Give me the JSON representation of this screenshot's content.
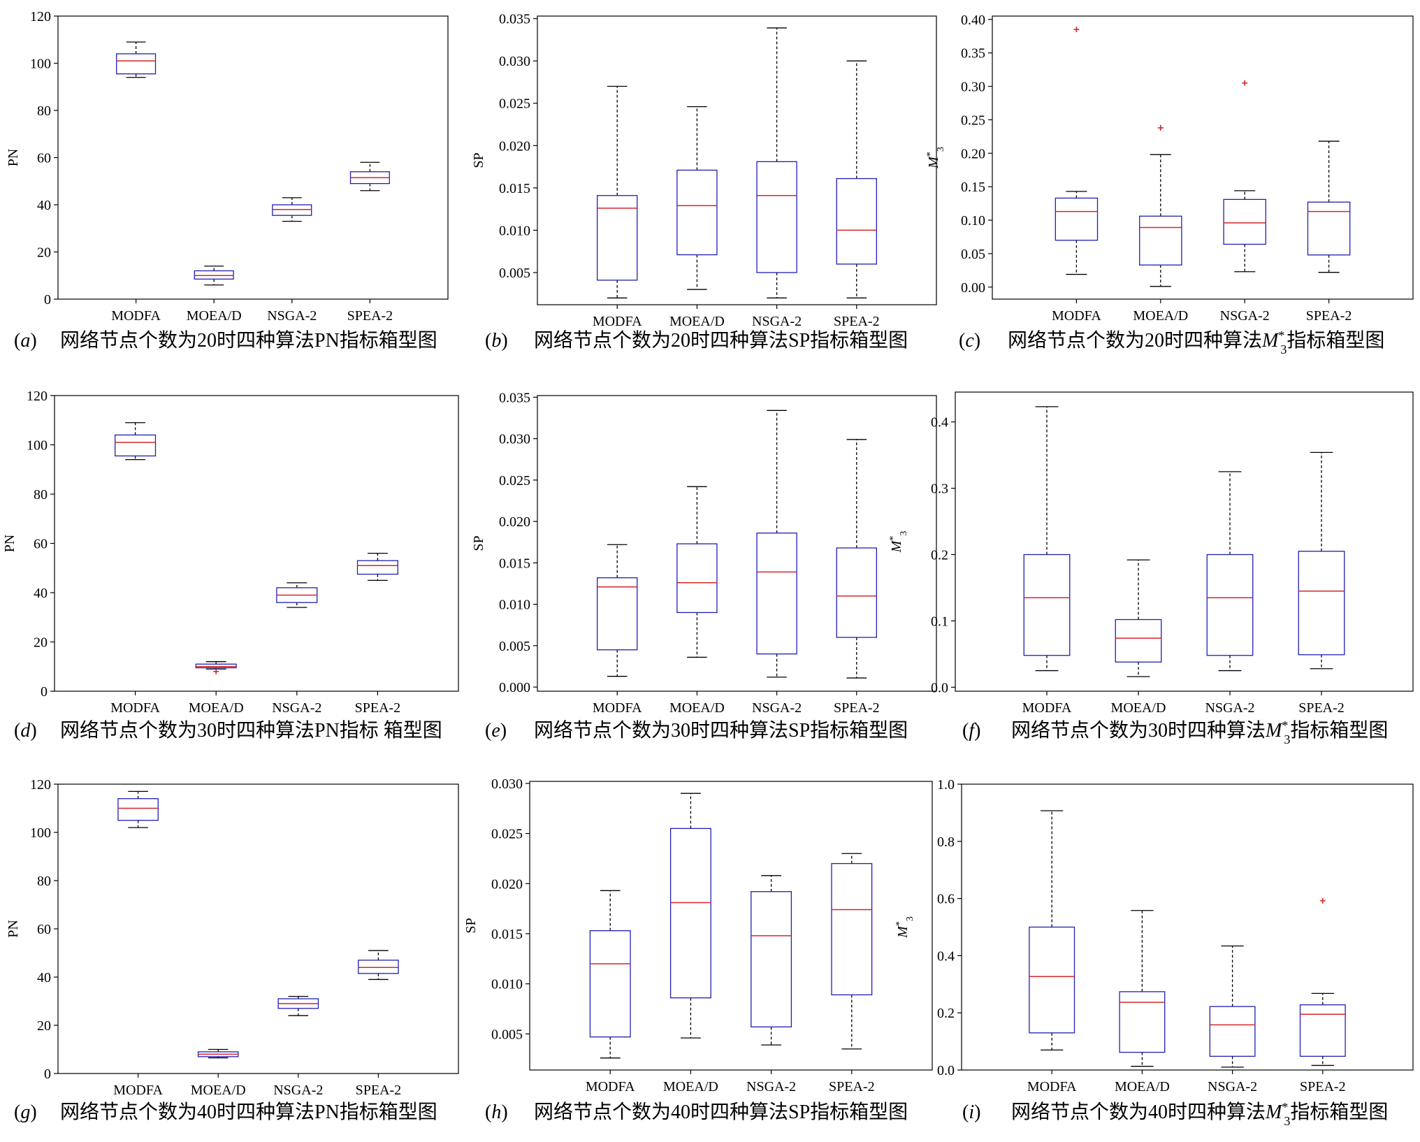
{
  "chart_data": [
    {
      "panel": "a",
      "type": "box",
      "caption": "网络节点个数为20时四种算法PN指标箱型图",
      "ylabel": "PN",
      "ylim": [
        0,
        120
      ],
      "yticks": [
        0,
        20,
        40,
        60,
        80,
        100,
        120
      ],
      "categories": [
        "MODFA",
        "MOEA/D",
        "NSGA-2",
        "SPEA-2"
      ],
      "boxes": [
        {
          "category": "MODFA",
          "whislo": 94,
          "q1": 95.5,
          "median": 101,
          "q3": 104,
          "whishi": 109,
          "fliers": []
        },
        {
          "category": "MOEA/D",
          "whislo": 6,
          "q1": 8.5,
          "median": 10,
          "q3": 12,
          "whishi": 14,
          "fliers": []
        },
        {
          "category": "NSGA-2",
          "whislo": 33,
          "q1": 35.5,
          "median": 38,
          "q3": 40,
          "whishi": 43,
          "fliers": []
        },
        {
          "category": "SPEA-2",
          "whislo": 46,
          "q1": 49,
          "median": 51.5,
          "q3": 54,
          "whishi": 58,
          "fliers": []
        }
      ]
    },
    {
      "panel": "b",
      "type": "box",
      "caption": "网络节点个数为20时四种算法SP指标箱型图",
      "ylabel": "SP",
      "ylim": [
        0.0012,
        0.0353
      ],
      "yticks": [
        0.005,
        0.01,
        0.015,
        0.02,
        0.025,
        0.03,
        0.035
      ],
      "tick_decimals": 3,
      "categories": [
        "MODFA",
        "MOEA/D",
        "NSGA-2",
        "SPEA-2"
      ],
      "boxes": [
        {
          "category": "MODFA",
          "whislo": 0.002,
          "q1": 0.0041,
          "median": 0.0126,
          "q3": 0.0141,
          "whishi": 0.027,
          "fliers": []
        },
        {
          "category": "MOEA/D",
          "whislo": 0.003,
          "q1": 0.0071,
          "median": 0.0129,
          "q3": 0.0171,
          "whishi": 0.0246,
          "fliers": []
        },
        {
          "category": "NSGA-2",
          "whislo": 0.002,
          "q1": 0.005,
          "median": 0.0141,
          "q3": 0.0181,
          "whishi": 0.0339,
          "fliers": []
        },
        {
          "category": "SPEA-2",
          "whislo": 0.002,
          "q1": 0.006,
          "median": 0.01,
          "q3": 0.0161,
          "whishi": 0.03,
          "fliers": []
        }
      ]
    },
    {
      "panel": "c",
      "type": "box",
      "caption": "网络节点个数为20时四种算法M*3指标箱型图",
      "caption_parts": {
        "text1": "网络节点个数为20时四种算法",
        "symbol": "M",
        "sup": "*",
        "sub": "3",
        "text2": "指标箱型图"
      },
      "ylabel": "M*3",
      "ylim": [
        -0.018,
        0.405
      ],
      "yticks": [
        0.0,
        0.05,
        0.1,
        0.15,
        0.2,
        0.25,
        0.3,
        0.35,
        0.4
      ],
      "tick_decimals": 2,
      "categories": [
        "MODFA",
        "MOEA/D",
        "NSGA-2",
        "SPEA-2"
      ],
      "boxes": [
        {
          "category": "MODFA",
          "whislo": 0.019,
          "q1": 0.07,
          "median": 0.113,
          "q3": 0.133,
          "whishi": 0.143,
          "fliers": [
            0.385
          ]
        },
        {
          "category": "MOEA/D",
          "whislo": 0.001,
          "q1": 0.033,
          "median": 0.089,
          "q3": 0.106,
          "whishi": 0.198,
          "fliers": [
            0.238
          ]
        },
        {
          "category": "NSGA-2",
          "whislo": 0.023,
          "q1": 0.064,
          "median": 0.096,
          "q3": 0.131,
          "whishi": 0.144,
          "fliers": [
            0.305
          ]
        },
        {
          "category": "SPEA-2",
          "whislo": 0.022,
          "q1": 0.048,
          "median": 0.113,
          "q3": 0.127,
          "whishi": 0.218,
          "fliers": []
        }
      ]
    },
    {
      "panel": "d",
      "type": "box",
      "caption": "网络节点个数为30时四种算法PN指标 箱型图",
      "ylabel": "PN",
      "ylim": [
        0,
        120
      ],
      "yticks": [
        0,
        20,
        40,
        60,
        80,
        100,
        120
      ],
      "categories": [
        "MODFA",
        "MOEA/D",
        "NSGA-2",
        "SPEA-2"
      ],
      "boxes": [
        {
          "category": "MODFA",
          "whislo": 94,
          "q1": 95.5,
          "median": 101,
          "q3": 104,
          "whishi": 109,
          "fliers": []
        },
        {
          "category": "MOEA/D",
          "whislo": 9,
          "q1": 9.5,
          "median": 10,
          "q3": 11,
          "whishi": 12,
          "fliers": [
            8
          ]
        },
        {
          "category": "NSGA-2",
          "whislo": 34,
          "q1": 36,
          "median": 39,
          "q3": 42,
          "whishi": 44,
          "fliers": []
        },
        {
          "category": "SPEA-2",
          "whislo": 45,
          "q1": 47.5,
          "median": 51,
          "q3": 53,
          "whishi": 56,
          "fliers": []
        }
      ]
    },
    {
      "panel": "e",
      "type": "box",
      "caption": "网络节点个数为30时四种算法SP指标箱型图",
      "ylabel": "SP",
      "ylim": [
        -0.0005,
        0.0352
      ],
      "yticks": [
        0.0,
        0.005,
        0.01,
        0.015,
        0.02,
        0.025,
        0.03,
        0.035
      ],
      "tick_decimals": 3,
      "categories": [
        "MODFA",
        "MOEA/D",
        "NSGA-2",
        "SPEA-2"
      ],
      "boxes": [
        {
          "category": "MODFA",
          "whislo": 0.0013,
          "q1": 0.0045,
          "median": 0.0121,
          "q3": 0.0132,
          "whishi": 0.0172,
          "fliers": []
        },
        {
          "category": "MOEA/D",
          "whislo": 0.0036,
          "q1": 0.009,
          "median": 0.0126,
          "q3": 0.0173,
          "whishi": 0.0242,
          "fliers": []
        },
        {
          "category": "NSGA-2",
          "whislo": 0.0012,
          "q1": 0.004,
          "median": 0.0139,
          "q3": 0.0186,
          "whishi": 0.0334,
          "fliers": []
        },
        {
          "category": "SPEA-2",
          "whislo": 0.0011,
          "q1": 0.006,
          "median": 0.011,
          "q3": 0.0168,
          "whishi": 0.0299,
          "fliers": []
        }
      ]
    },
    {
      "panel": "f",
      "type": "box",
      "caption": "网络节点个数为30时四种算法M*3指标箱型图",
      "caption_parts": {
        "text1": "网络节点个数为30时四种算法",
        "symbol": "M",
        "sup": "*",
        "sub": "3",
        "text2": "指标箱型图"
      },
      "ylabel": "M*3",
      "ylim": [
        -0.006,
        0.445
      ],
      "yticks": [
        0.0,
        0.1,
        0.2,
        0.3,
        0.4
      ],
      "tick_decimals": 1,
      "categories": [
        "MODFA",
        "MOEA/D",
        "NSGA-2",
        "SPEA-2"
      ],
      "boxes": [
        {
          "category": "MODFA",
          "whislo": 0.025,
          "q1": 0.048,
          "median": 0.135,
          "q3": 0.2,
          "whishi": 0.423,
          "fliers": []
        },
        {
          "category": "MOEA/D",
          "whislo": 0.016,
          "q1": 0.038,
          "median": 0.074,
          "q3": 0.102,
          "whishi": 0.192,
          "fliers": []
        },
        {
          "category": "NSGA-2",
          "whislo": 0.025,
          "q1": 0.048,
          "median": 0.135,
          "q3": 0.2,
          "whishi": 0.325,
          "fliers": []
        },
        {
          "category": "SPEA-2",
          "whislo": 0.028,
          "q1": 0.049,
          "median": 0.145,
          "q3": 0.205,
          "whishi": 0.354,
          "fliers": []
        }
      ]
    },
    {
      "panel": "g",
      "type": "box",
      "caption": "网络节点个数为40时四种算法PN指标箱型图",
      "ylabel": "PN",
      "ylim": [
        0,
        120
      ],
      "yticks": [
        0,
        20,
        40,
        60,
        80,
        100,
        120
      ],
      "categories": [
        "MODFA",
        "MOEA/D",
        "NSGA-2",
        "SPEA-2"
      ],
      "boxes": [
        {
          "category": "MODFA",
          "whislo": 102,
          "q1": 105,
          "median": 110,
          "q3": 114,
          "whishi": 117,
          "fliers": []
        },
        {
          "category": "MOEA/D",
          "whislo": 6.5,
          "q1": 7,
          "median": 8,
          "q3": 9,
          "whishi": 10,
          "fliers": []
        },
        {
          "category": "NSGA-2",
          "whislo": 24,
          "q1": 27,
          "median": 29,
          "q3": 31,
          "whishi": 32,
          "fliers": []
        },
        {
          "category": "SPEA-2",
          "whislo": 39,
          "q1": 41.5,
          "median": 44,
          "q3": 47,
          "whishi": 51,
          "fliers": []
        }
      ]
    },
    {
      "panel": "h",
      "type": "box",
      "caption": "网络节点个数为40时四种算法SP指标箱型图",
      "ylabel": "SP",
      "ylim": [
        0.0014,
        0.0302
      ],
      "yticks": [
        0.005,
        0.01,
        0.015,
        0.02,
        0.025,
        0.03
      ],
      "tick_decimals": 3,
      "categories": [
        "MODFA",
        "MOEA/D",
        "NSGA-2",
        "SPEA-2"
      ],
      "boxes": [
        {
          "category": "MODFA",
          "whislo": 0.0026,
          "q1": 0.0047,
          "median": 0.012,
          "q3": 0.0153,
          "whishi": 0.0193,
          "fliers": []
        },
        {
          "category": "MOEA/D",
          "whislo": 0.0046,
          "q1": 0.0086,
          "median": 0.0181,
          "q3": 0.0255,
          "whishi": 0.029,
          "fliers": []
        },
        {
          "category": "NSGA-2",
          "whislo": 0.0039,
          "q1": 0.0057,
          "median": 0.0148,
          "q3": 0.0192,
          "whishi": 0.0208,
          "fliers": []
        },
        {
          "category": "SPEA-2",
          "whislo": 0.0035,
          "q1": 0.0089,
          "median": 0.0174,
          "q3": 0.022,
          "whishi": 0.023,
          "fliers": []
        }
      ]
    },
    {
      "panel": "i",
      "type": "box",
      "caption": "网络节点个数为40时四种算法M*3指标箱型图",
      "caption_parts": {
        "text1": "网络节点个数为40时四种算法",
        "symbol": "M",
        "sup": "*",
        "sub": "3",
        "text2": "指标箱型图"
      },
      "ylabel": "M*3",
      "ylim": [
        0.0,
        1.0
      ],
      "yticks": [
        0.0,
        0.2,
        0.4,
        0.6,
        0.8,
        1.0
      ],
      "tick_decimals": 1,
      "categories": [
        "MODFA",
        "MOEA/D",
        "NSGA-2",
        "SPEA-2"
      ],
      "boxes": [
        {
          "category": "MODFA",
          "whislo": 0.07,
          "q1": 0.13,
          "median": 0.327,
          "q3": 0.5,
          "whishi": 0.907,
          "fliers": []
        },
        {
          "category": "MOEA/D",
          "whislo": 0.013,
          "q1": 0.062,
          "median": 0.237,
          "q3": 0.274,
          "whishi": 0.558,
          "fliers": []
        },
        {
          "category": "NSGA-2",
          "whislo": 0.01,
          "q1": 0.048,
          "median": 0.158,
          "q3": 0.222,
          "whishi": 0.434,
          "fliers": []
        },
        {
          "category": "SPEA-2",
          "whislo": 0.016,
          "q1": 0.048,
          "median": 0.195,
          "q3": 0.228,
          "whishi": 0.268,
          "fliers": [
            0.592
          ]
        }
      ]
    }
  ],
  "colors": {
    "box": "#1f1fb4",
    "median": "#d62728",
    "whisker": "#000000",
    "flier": "#d62728",
    "text": "#000000"
  }
}
